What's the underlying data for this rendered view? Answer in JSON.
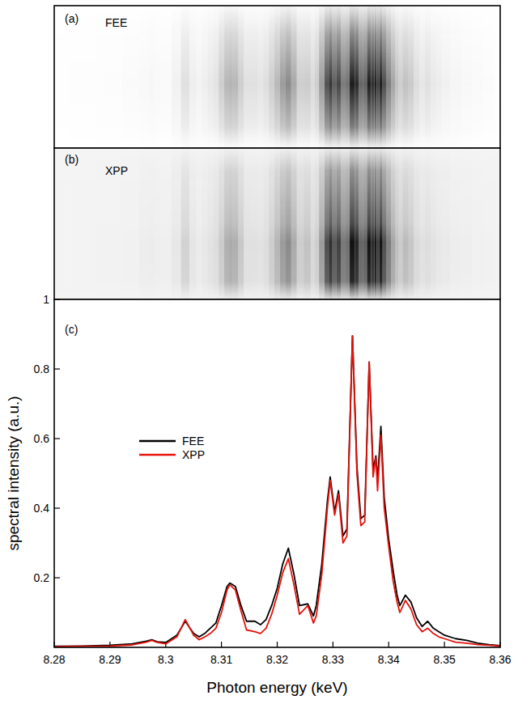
{
  "chart_data": {
    "type": "line",
    "panel_labels": [
      "(a)",
      "(b)",
      "(c)"
    ],
    "x_label": "Photon energy (keV)",
    "y_label": "spectral intensity (a.u.)",
    "x": [
      8.28,
      8.285,
      8.29,
      8.294,
      8.2965,
      8.2975,
      8.2985,
      8.3,
      8.302,
      8.3035,
      8.305,
      8.306,
      8.307,
      8.308,
      8.309,
      8.31,
      8.311,
      8.3115,
      8.3125,
      8.3135,
      8.3145,
      8.316,
      8.317,
      8.318,
      8.319,
      8.32,
      8.321,
      8.322,
      8.323,
      8.324,
      8.3255,
      8.3265,
      8.327,
      8.328,
      8.329,
      8.3295,
      8.3303,
      8.331,
      8.3318,
      8.3325,
      8.3335,
      8.3343,
      8.335,
      8.3357,
      8.3365,
      8.3372,
      8.3377,
      8.338,
      8.3386,
      8.3392,
      8.34,
      8.3408,
      8.3415,
      8.342,
      8.343,
      8.344,
      8.345,
      8.346,
      8.347,
      8.348,
      8.349,
      8.35,
      8.352,
      8.354,
      8.356,
      8.358,
      8.36
    ],
    "series": [
      {
        "name": "FEE",
        "color": "#000000",
        "values": [
          0.003,
          0.004,
          0.006,
          0.01,
          0.018,
          0.022,
          0.016,
          0.014,
          0.035,
          0.075,
          0.04,
          0.03,
          0.04,
          0.055,
          0.07,
          0.12,
          0.175,
          0.185,
          0.175,
          0.12,
          0.075,
          0.075,
          0.065,
          0.08,
          0.12,
          0.17,
          0.24,
          0.285,
          0.21,
          0.12,
          0.125,
          0.09,
          0.12,
          0.24,
          0.42,
          0.49,
          0.39,
          0.45,
          0.32,
          0.34,
          0.895,
          0.52,
          0.37,
          0.38,
          0.82,
          0.51,
          0.55,
          0.48,
          0.635,
          0.43,
          0.31,
          0.22,
          0.15,
          0.12,
          0.15,
          0.13,
          0.085,
          0.06,
          0.075,
          0.055,
          0.045,
          0.035,
          0.025,
          0.02,
          0.012,
          0.008,
          0.005
        ]
      },
      {
        "name": "XPP",
        "color": "#e3120b",
        "values": [
          0.002,
          0.003,
          0.004,
          0.007,
          0.015,
          0.02,
          0.014,
          0.01,
          0.03,
          0.08,
          0.035,
          0.022,
          0.03,
          0.04,
          0.055,
          0.1,
          0.165,
          0.18,
          0.165,
          0.105,
          0.05,
          0.045,
          0.04,
          0.055,
          0.095,
          0.15,
          0.215,
          0.255,
          0.18,
          0.095,
          0.12,
          0.07,
          0.09,
          0.21,
          0.4,
          0.48,
          0.38,
          0.44,
          0.3,
          0.32,
          0.895,
          0.5,
          0.35,
          0.36,
          0.82,
          0.49,
          0.545,
          0.45,
          0.61,
          0.4,
          0.29,
          0.19,
          0.13,
          0.1,
          0.135,
          0.11,
          0.065,
          0.045,
          0.055,
          0.04,
          0.03,
          0.025,
          0.015,
          0.012,
          0.008,
          0.006,
          0.004
        ]
      }
    ],
    "xlim": [
      8.28,
      8.36
    ],
    "xticks": [
      8.28,
      8.29,
      8.3,
      8.31,
      8.32,
      8.33,
      8.34,
      8.35,
      8.36
    ],
    "ylim": [
      0,
      1
    ],
    "yticks": [
      0.2,
      0.4,
      0.6,
      0.8,
      1
    ],
    "legend": "upper left",
    "grid": false
  }
}
